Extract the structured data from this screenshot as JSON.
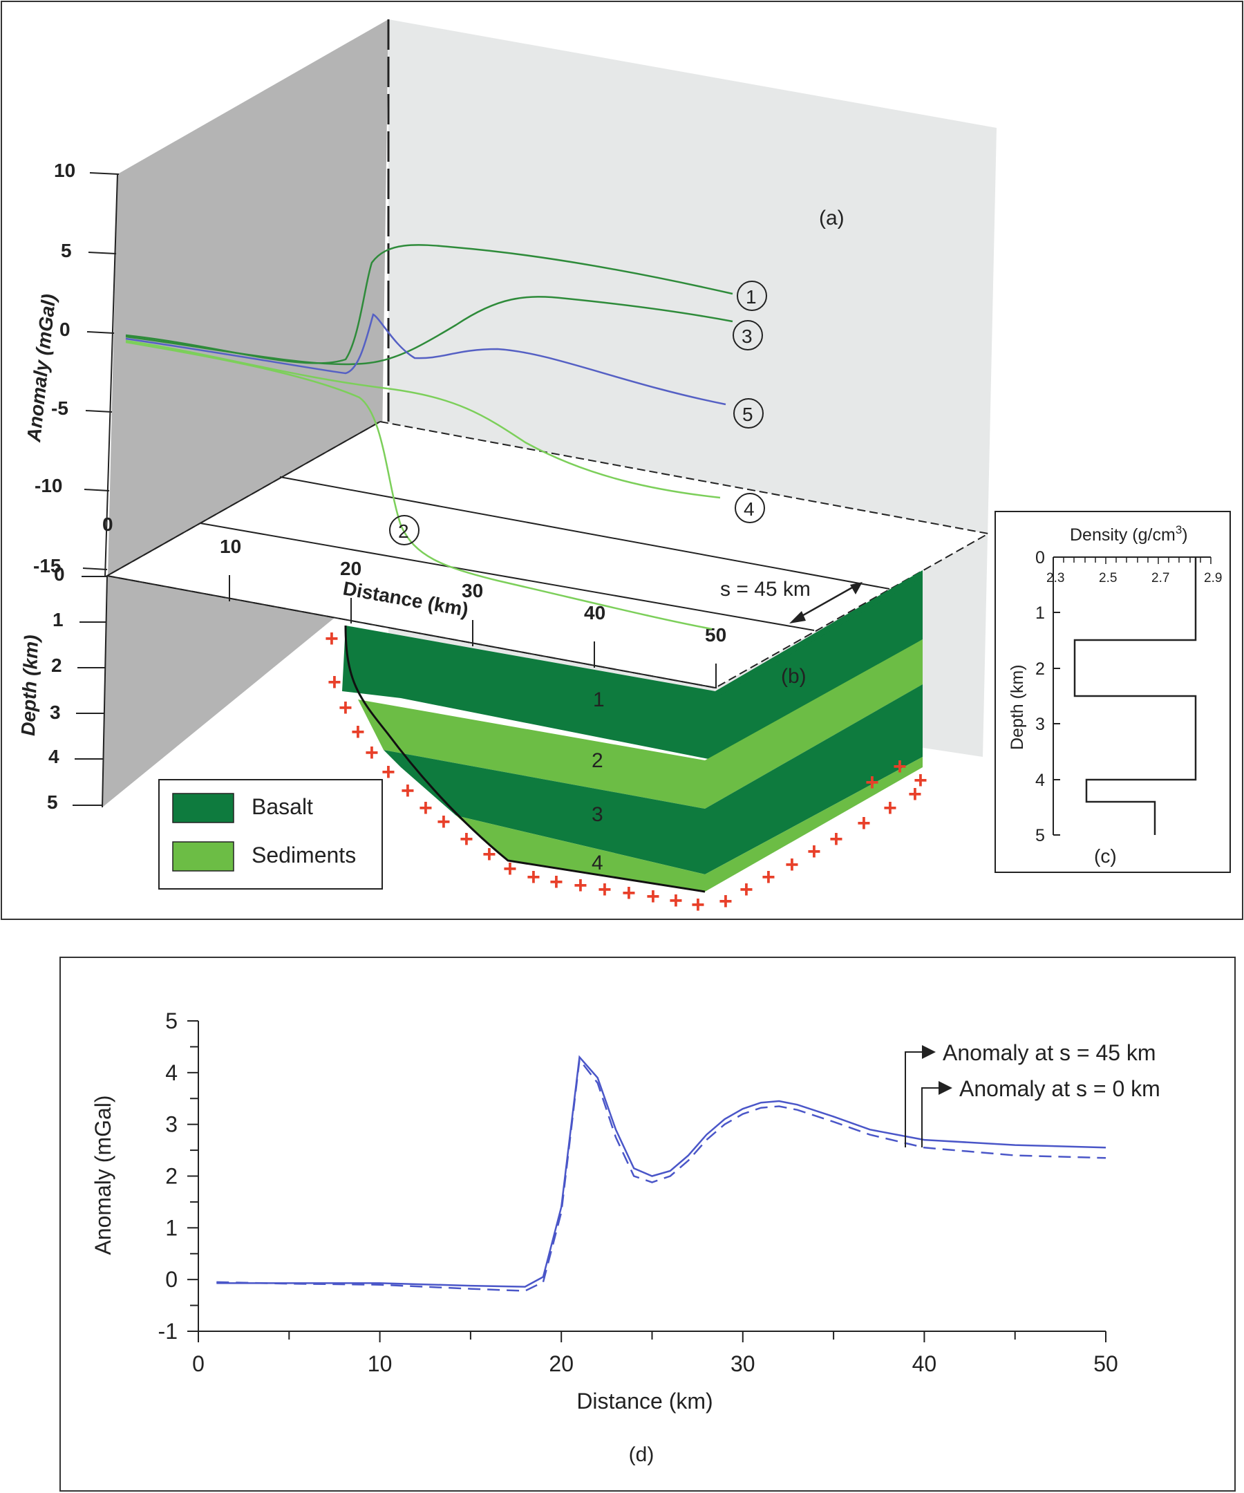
{
  "top_panel": {
    "labels": {
      "a": "(a)",
      "b": "(b)",
      "c": "(c)"
    },
    "anomaly_axis": {
      "label": "Anomaly (mGal)",
      "ticks": [
        "10",
        "5",
        "0",
        "-5",
        "-10",
        "-15"
      ]
    },
    "distance_axis": {
      "label": "Distance (km)",
      "ticks": [
        "0",
        "10",
        "20",
        "30",
        "40",
        "50"
      ]
    },
    "depth_axis": {
      "label": "Depth (km)",
      "ticks": [
        "0",
        "1",
        "2",
        "3",
        "4",
        "5"
      ]
    },
    "s_label": "s = 45 km",
    "curve_labels": [
      "1",
      "2",
      "3",
      "4",
      "5"
    ],
    "layer_numbers": [
      "1",
      "2",
      "3",
      "4"
    ],
    "legend": {
      "basalt": "Basalt",
      "sediments": "Sediments"
    },
    "colors": {
      "basalt": "#0e7b3e",
      "sediments": "#6cbd45",
      "green_curve": "#2e8b3a",
      "light_green_curve": "#7ccf5a",
      "blue_curve": "#5560c4",
      "plus": "#e8402a",
      "back_wall": "#e6e8e8",
      "side_wall": "#b4b4b4"
    }
  },
  "density_panel": {
    "title": "Density (g/cm",
    "title_sup": "3",
    "title_end": ")",
    "x_ticks": [
      "2.3",
      "2.5",
      "2.7",
      "2.9"
    ],
    "ylabel": "Depth (km)",
    "y_ticks": [
      "0",
      "1",
      "2",
      "3",
      "4",
      "5"
    ],
    "label": "(c)"
  },
  "chart_data": {
    "type": "line",
    "label": "(d)",
    "xlabel": "Distance (km)",
    "ylabel": "Anomaly (mGal)",
    "xlim": [
      0,
      50
    ],
    "ylim": [
      -1,
      5
    ],
    "x_ticks": [
      "0",
      "10",
      "20",
      "30",
      "40",
      "50"
    ],
    "y_ticks": [
      "5",
      "4",
      "3",
      "2",
      "1",
      "0",
      "-1"
    ],
    "grid": false,
    "color": "#4a56c8",
    "series": [
      {
        "name": "Anomaly at s = 45 km",
        "style": "solid",
        "x": [
          1,
          5,
          10,
          15,
          18,
          19,
          20,
          21,
          22,
          23,
          24,
          25,
          26,
          27,
          28,
          29,
          30,
          31,
          32,
          33,
          35,
          37,
          40,
          45,
          50
        ],
        "y": [
          -0.07,
          -0.07,
          -0.07,
          -0.12,
          -0.14,
          0.05,
          1.4,
          4.3,
          3.9,
          2.9,
          2.15,
          2.0,
          2.1,
          2.4,
          2.8,
          3.1,
          3.3,
          3.42,
          3.45,
          3.38,
          3.15,
          2.9,
          2.7,
          2.6,
          2.55
        ]
      },
      {
        "name": "Anomaly at s = 0 km",
        "style": "dashed",
        "x": [
          1,
          5,
          10,
          15,
          18,
          19,
          20,
          21,
          22,
          23,
          24,
          25,
          26,
          27,
          28,
          29,
          30,
          31,
          32,
          33,
          35,
          37,
          40,
          45,
          50
        ],
        "y": [
          -0.05,
          -0.08,
          -0.1,
          -0.18,
          -0.22,
          -0.05,
          1.3,
          4.25,
          3.8,
          2.75,
          2.0,
          1.88,
          2.0,
          2.3,
          2.7,
          3.0,
          3.2,
          3.32,
          3.35,
          3.28,
          3.05,
          2.8,
          2.55,
          2.4,
          2.35
        ]
      }
    ]
  }
}
